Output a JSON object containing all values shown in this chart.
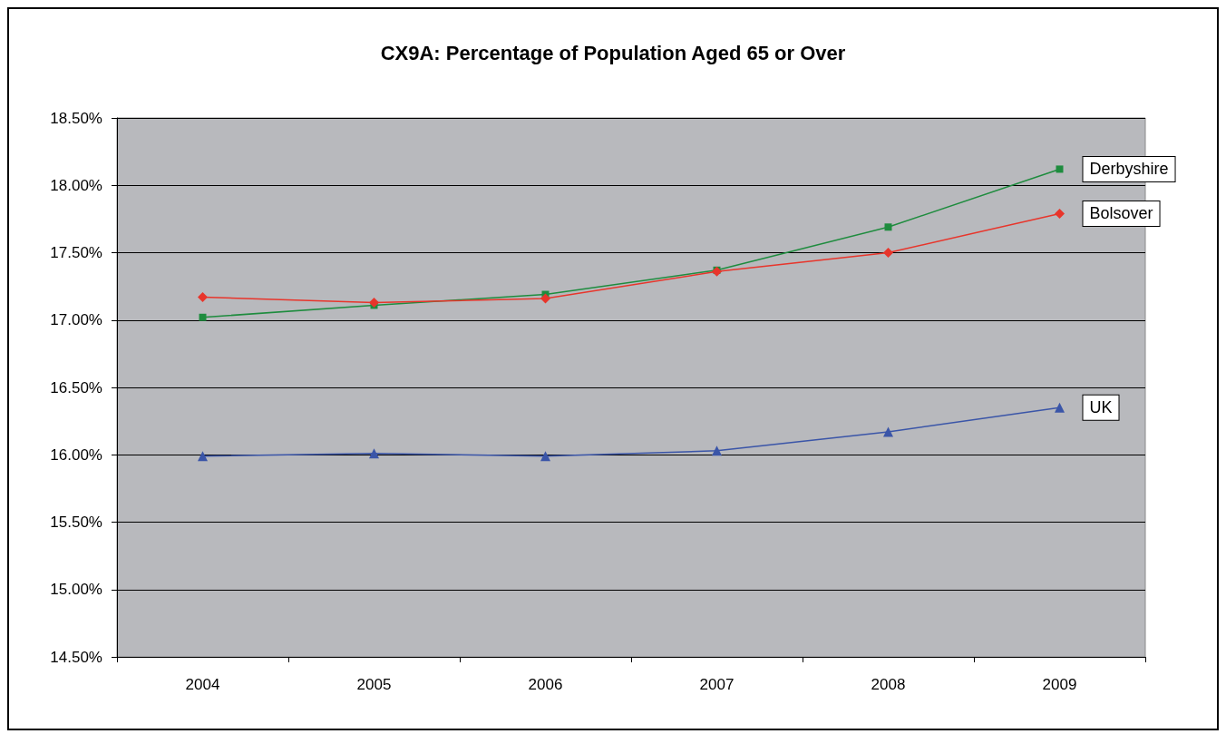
{
  "chart_data": {
    "type": "line",
    "title": "CX9A: Percentage of Population Aged 65 or Over",
    "categories": [
      "2004",
      "2005",
      "2006",
      "2007",
      "2008",
      "2009"
    ],
    "series": [
      {
        "name": "Derbyshire",
        "color": "#1e8c3e",
        "marker": "square",
        "values": [
          17.02,
          17.11,
          17.19,
          17.37,
          17.69,
          18.12
        ]
      },
      {
        "name": "Bolsover",
        "color": "#e8352b",
        "marker": "diamond",
        "values": [
          17.17,
          17.13,
          17.16,
          17.36,
          17.5,
          17.79
        ]
      },
      {
        "name": "UK",
        "color": "#3a55a8",
        "marker": "triangle",
        "values": [
          15.99,
          16.01,
          15.99,
          16.03,
          16.17,
          16.35
        ]
      }
    ],
    "ylim": [
      14.5,
      18.5
    ],
    "yticks": [
      {
        "value": 14.5,
        "label": "14.50%"
      },
      {
        "value": 15,
        "label": "15.00%"
      },
      {
        "value": 15.5,
        "label": "15.50%"
      },
      {
        "value": 16,
        "label": "16.00%"
      },
      {
        "value": 16.5,
        "label": "16.50%"
      },
      {
        "value": 17,
        "label": "17.00%"
      },
      {
        "value": 17.5,
        "label": "17.50%"
      },
      {
        "value": 18,
        "label": "18.00%"
      },
      {
        "value": 18.5,
        "label": "18.50%"
      }
    ],
    "grid": "y"
  }
}
